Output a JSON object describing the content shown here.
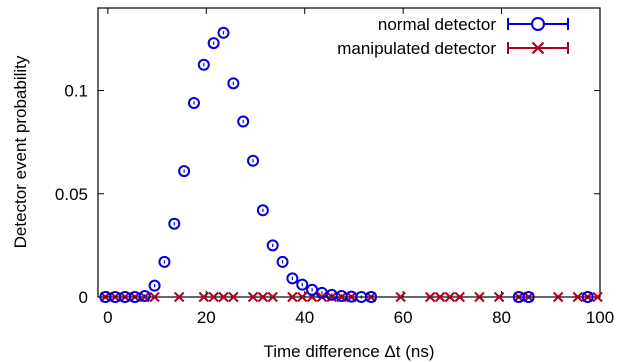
{
  "chart_data": {
    "type": "scatter",
    "xlabel": "Time difference Δt (ns)",
    "ylabel": "Detector event probability",
    "xlim": [
      -2,
      100
    ],
    "ylim": [
      0,
      0.14
    ],
    "x_ticks": [
      0,
      20,
      40,
      60,
      80,
      100
    ],
    "x_tick_labels": [
      "0",
      "20",
      "40",
      "60",
      "80",
      "100"
    ],
    "y_ticks": [
      0,
      0.05,
      0.1
    ],
    "y_tick_labels": [
      "0",
      "0.05",
      "0.1"
    ],
    "legend_position": "top-right",
    "series": [
      {
        "name": "normal detector",
        "color": "#0000dd",
        "marker": "circle",
        "error_bars": true,
        "points": [
          [
            -0.5,
            0.0
          ],
          [
            1.5,
            0.0
          ],
          [
            3.5,
            0.0
          ],
          [
            5.5,
            0.0
          ],
          [
            7.5,
            0.0005
          ],
          [
            9.5,
            0.0055
          ],
          [
            11.5,
            0.017
          ],
          [
            13.5,
            0.0355
          ],
          [
            15.5,
            0.061
          ],
          [
            17.5,
            0.094
          ],
          [
            19.5,
            0.1125
          ],
          [
            21.5,
            0.123
          ],
          [
            23.5,
            0.128
          ],
          [
            25.5,
            0.1035
          ],
          [
            27.5,
            0.085
          ],
          [
            29.5,
            0.066
          ],
          [
            31.5,
            0.042
          ],
          [
            33.5,
            0.025
          ],
          [
            35.5,
            0.017
          ],
          [
            37.5,
            0.009
          ],
          [
            39.5,
            0.006
          ],
          [
            41.5,
            0.0035
          ],
          [
            43.5,
            0.002
          ],
          [
            45.5,
            0.001
          ],
          [
            47.5,
            0.0005
          ],
          [
            49.5,
            0.0002
          ],
          [
            51.5,
            0.0
          ],
          [
            53.5,
            0.0
          ],
          [
            83.5,
            0.0
          ],
          [
            85.5,
            0.0
          ],
          [
            97.5,
            0.0
          ]
        ]
      },
      {
        "name": "manipulated detector",
        "color": "#b00020",
        "marker": "cross",
        "error_bars": true,
        "points": [
          [
            -0.5,
            0.0
          ],
          [
            1.5,
            0.0
          ],
          [
            3.5,
            0.0
          ],
          [
            5.5,
            0.0
          ],
          [
            7.5,
            0.0
          ],
          [
            9.5,
            0.0
          ],
          [
            14.5,
            0.0
          ],
          [
            19.5,
            0.0
          ],
          [
            21.5,
            0.0
          ],
          [
            23.5,
            0.0
          ],
          [
            25.5,
            0.0
          ],
          [
            29.5,
            0.0
          ],
          [
            31.5,
            0.0
          ],
          [
            33.5,
            0.0
          ],
          [
            37.5,
            0.0
          ],
          [
            39.5,
            0.0
          ],
          [
            41.5,
            0.0
          ],
          [
            43.5,
            0.0
          ],
          [
            45.5,
            0.0
          ],
          [
            47.5,
            0.0
          ],
          [
            49.5,
            0.0
          ],
          [
            53.5,
            0.0
          ],
          [
            59.5,
            0.0
          ],
          [
            65.5,
            0.0
          ],
          [
            67.5,
            0.0
          ],
          [
            69.5,
            0.0
          ],
          [
            71.5,
            0.0
          ],
          [
            75.5,
            0.0
          ],
          [
            79.5,
            0.0
          ],
          [
            83.5,
            0.0
          ],
          [
            85.5,
            0.0
          ],
          [
            91.5,
            0.0
          ],
          [
            95.5,
            0.0
          ],
          [
            97.5,
            0.0
          ],
          [
            99.5,
            0.0
          ]
        ]
      }
    ]
  }
}
